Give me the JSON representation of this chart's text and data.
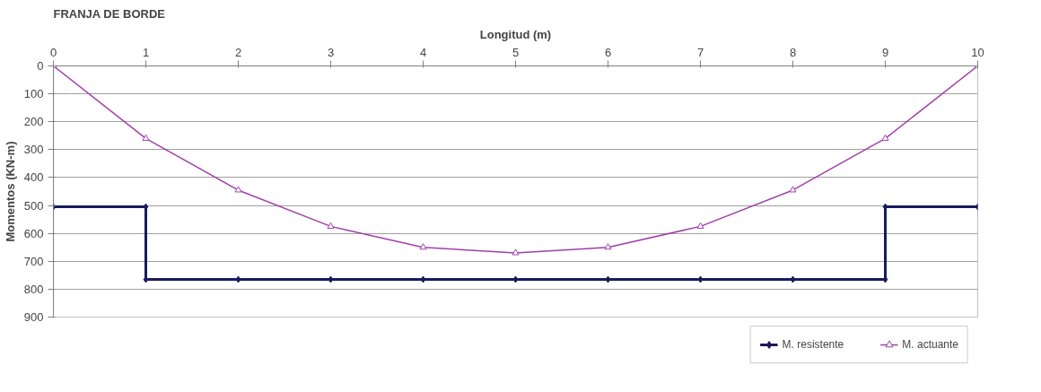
{
  "chart_data": {
    "type": "line",
    "title": "FRANJA DE BORDE",
    "xlabel": "Longitud (m)",
    "ylabel": "Momentos (KN-m)",
    "xlim": [
      0,
      10
    ],
    "xticks": [
      0,
      1,
      2,
      3,
      4,
      5,
      6,
      7,
      8,
      9,
      10
    ],
    "ylim": [
      900,
      0
    ],
    "yticks": [
      0,
      100,
      200,
      300,
      400,
      500,
      600,
      700,
      800,
      900
    ],
    "grid": "y",
    "legend": "bottom",
    "series": [
      {
        "name": "M. resistente",
        "color": "#1a1a5e",
        "marker": "diamond",
        "x": [
          0,
          1,
          1,
          2,
          3,
          4,
          5,
          6,
          7,
          8,
          9,
          9,
          10
        ],
        "values": [
          505,
          505,
          765,
          765,
          765,
          765,
          765,
          765,
          765,
          765,
          765,
          505,
          505
        ]
      },
      {
        "name": "M. actuante",
        "color": "#a040a8",
        "marker": "triangle",
        "x": [
          0,
          1,
          2,
          3,
          4,
          5,
          6,
          7,
          8,
          9,
          10
        ],
        "values": [
          0,
          260,
          445,
          575,
          650,
          670,
          650,
          575,
          445,
          260,
          0
        ]
      }
    ]
  }
}
